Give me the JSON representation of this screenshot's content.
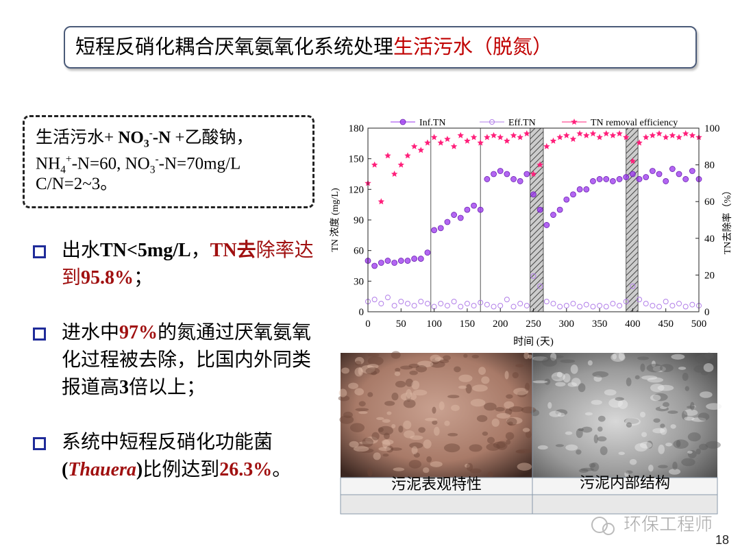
{
  "title": {
    "runs": [
      {
        "text": "短程反硝化耦合厌氧氨氧化系统处理"
      },
      {
        "text": "生活污水（脱氮）",
        "color": "#c00000"
      }
    ]
  },
  "conditions": {
    "lines": [
      [
        {
          "text": "生活污水+ "
        },
        {
          "text": "NO",
          "bold": true
        },
        {
          "text": "3",
          "bold": true,
          "sub": true
        },
        {
          "text": "-",
          "bold": true,
          "sup": true
        },
        {
          "text": "-N",
          "bold": true
        },
        {
          "text": " +乙酸钠，"
        }
      ],
      [
        {
          "text": "NH"
        },
        {
          "text": "4",
          "sub": true
        },
        {
          "text": "+",
          "sup": true
        },
        {
          "text": "-N=60, NO"
        },
        {
          "text": "3",
          "sub": true
        },
        {
          "text": "-",
          "sup": true
        },
        {
          "text": "-N=70mg/L"
        }
      ],
      [
        {
          "text": "C/N=2~3。"
        }
      ]
    ]
  },
  "bullets": [
    {
      "runs": [
        {
          "text": "出水"
        },
        {
          "text": "TN<5mg/L",
          "bold": true
        },
        {
          "text": "，"
        },
        {
          "text": "TN去",
          "bold": true,
          "color": "#a01010"
        },
        {
          "text": "除率达到",
          "color": "#a01010"
        },
        {
          "text": "95.8%",
          "bold": true,
          "color": "#a01010"
        },
        {
          "text": "；"
        }
      ]
    },
    {
      "runs": [
        {
          "text": "进水中"
        },
        {
          "text": "97%",
          "bold": true,
          "color": "#a01010"
        },
        {
          "text": "的氮通过厌氧氨氧化过程被去除，比国内外同类报道高"
        },
        {
          "text": "3",
          "bold": true
        },
        {
          "text": "倍以上；"
        }
      ]
    },
    {
      "runs": [
        {
          "text": "系统中短程反硝化功能菌"
        },
        {
          "text": "(",
          "bold": true
        },
        {
          "text": "Thauera",
          "bold": true,
          "italic": true,
          "color": "#a01010"
        },
        {
          "text": ")",
          "bold": true
        },
        {
          "text": "比例达到"
        },
        {
          "text": "26.3%",
          "bold": true,
          "color": "#a01010"
        },
        {
          "text": "。"
        }
      ]
    }
  ],
  "chart_data": {
    "type": "scatter",
    "xlabel": "时间 (天)",
    "ylabel": "TN 浓度 (mg/L)",
    "y2label": "TN去除率（%）",
    "xlim": [
      0,
      500
    ],
    "xticks": [
      0,
      50,
      100,
      150,
      200,
      250,
      300,
      350,
      400,
      450,
      500
    ],
    "ylim": [
      0,
      180
    ],
    "yticks": [
      0,
      30,
      60,
      90,
      120,
      150,
      180
    ],
    "y2lim": [
      0,
      100
    ],
    "y2ticks": [
      0,
      20,
      40,
      60,
      80,
      100
    ],
    "phase_lines": [
      95,
      170
    ],
    "shaded_ranges": [
      [
        245,
        265
      ],
      [
        390,
        408
      ]
    ],
    "x": [
      0,
      10,
      20,
      30,
      40,
      50,
      60,
      70,
      80,
      90,
      100,
      110,
      120,
      130,
      140,
      150,
      160,
      170,
      180,
      190,
      200,
      210,
      220,
      230,
      240,
      250,
      260,
      270,
      280,
      290,
      300,
      310,
      320,
      330,
      340,
      350,
      360,
      370,
      380,
      390,
      400,
      410,
      420,
      430,
      440,
      450,
      460,
      470,
      480,
      490,
      500
    ],
    "series": [
      {
        "name": "Inf.TN",
        "color": "#9933ee",
        "marker": "half-circle",
        "values": [
          50,
          45,
          48,
          50,
          48,
          50,
          50,
          52,
          52,
          58,
          80,
          82,
          88,
          95,
          92,
          100,
          104,
          100,
          130,
          135,
          138,
          135,
          130,
          128,
          135,
          115,
          100,
          85,
          95,
          100,
          110,
          115,
          120,
          120,
          128,
          130,
          130,
          128,
          130,
          132,
          135,
          130,
          132,
          138,
          135,
          128,
          140,
          135,
          130,
          138,
          130
        ]
      },
      {
        "name": "Eff.TN",
        "color": "#b07ce8",
        "marker": "open-circle",
        "values": [
          10,
          12,
          8,
          14,
          6,
          10,
          8,
          6,
          10,
          8,
          5,
          8,
          6,
          10,
          5,
          8,
          6,
          9,
          7,
          5,
          6,
          12,
          5,
          8,
          6,
          35,
          25,
          10,
          8,
          5,
          6,
          8,
          5,
          7,
          5,
          6,
          5,
          8,
          6,
          10,
          25,
          12,
          8,
          6,
          5,
          10,
          6,
          8,
          5,
          7,
          6
        ]
      },
      {
        "name": "TN removal efficiency",
        "color": "#ff1f7a",
        "marker": "star",
        "axis": "y2",
        "values": [
          70,
          80,
          60,
          85,
          75,
          80,
          85,
          90,
          88,
          92,
          95,
          92,
          94,
          90,
          96,
          93,
          95,
          92,
          95,
          96,
          95,
          93,
          96,
          95,
          97,
          75,
          80,
          90,
          93,
          95,
          96,
          94,
          97,
          96,
          97,
          95,
          97,
          96,
          97,
          95,
          82,
          92,
          95,
          96,
          97,
          95,
          96,
          95,
          97,
          96,
          95
        ]
      }
    ]
  },
  "images": [
    {
      "caption": "污泥表观特性"
    },
    {
      "caption": "污泥内部结构"
    }
  ],
  "watermark": "环保工程师",
  "page_number": 18
}
